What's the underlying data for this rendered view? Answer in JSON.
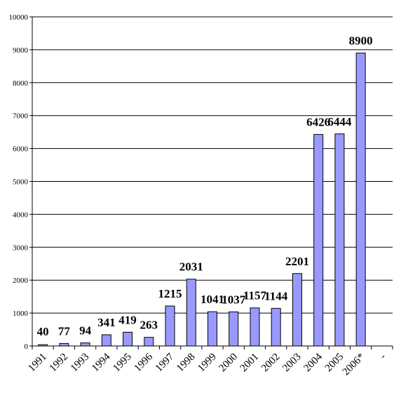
{
  "chart_data": {
    "type": "bar",
    "categories": [
      "1991",
      "1992",
      "1993",
      "1994",
      "1995",
      "1996",
      "1997",
      "1998",
      "1999",
      "2000",
      "2001",
      "2002",
      "2003",
      "2004",
      "2005",
      "2006*",
      "-"
    ],
    "values": [
      40,
      77,
      94,
      341,
      419,
      263,
      1215,
      2031,
      1041,
      1037,
      1157,
      1144,
      2201,
      6426,
      6444,
      8900,
      null
    ],
    "data_labels": [
      "40",
      "77",
      "94",
      "341",
      "419",
      "263",
      "1215",
      "2031",
      "1041",
      "1037",
      "1157",
      "1144",
      "2201",
      "6426",
      "6444",
      "8900",
      ""
    ],
    "ylim": [
      0,
      10000
    ],
    "yticks": [
      0,
      1000,
      2000,
      3000,
      4000,
      5000,
      6000,
      7000,
      8000,
      9000,
      10000
    ],
    "grid": true,
    "colors": {
      "bar": "#9999ff",
      "bar_stroke": "#000000",
      "grid": "#000000"
    }
  }
}
